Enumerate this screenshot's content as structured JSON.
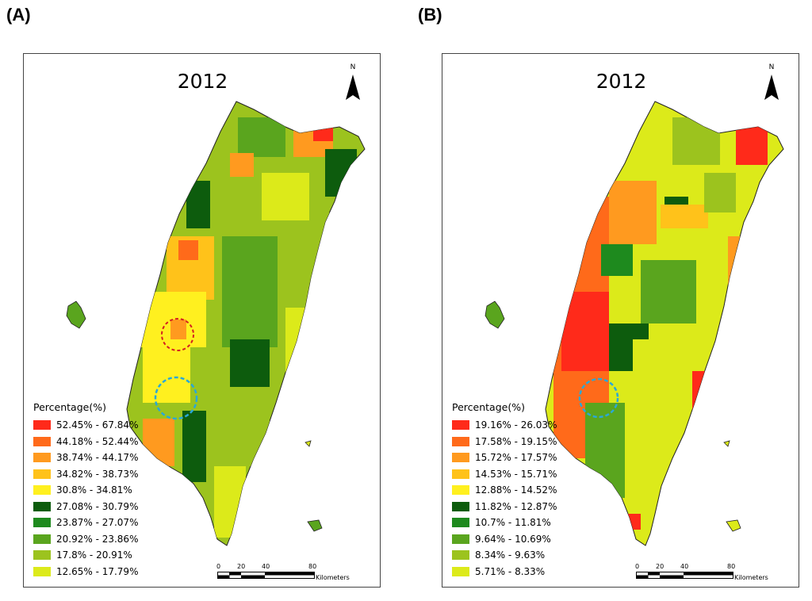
{
  "panels": [
    {
      "label": "(A)",
      "year": "2012",
      "north_letter": "N",
      "legend": {
        "title": "Percentage(%)",
        "items": [
          {
            "range": "52.45% - 67.84%",
            "color": "#ff2a1a"
          },
          {
            "range": "44.18% - 52.44%",
            "color": "#ff6a1a"
          },
          {
            "range": "38.74% - 44.17%",
            "color": "#ff9a1f"
          },
          {
            "range": "34.82% - 38.73%",
            "color": "#ffc21a"
          },
          {
            "range": "30.8% - 34.81%",
            "color": "#fff01f"
          },
          {
            "range": "27.08% - 30.79%",
            "color": "#0d5c0d"
          },
          {
            "range": "23.87% - 27.07%",
            "color": "#1e8a1e"
          },
          {
            "range": "20.92% - 23.86%",
            "color": "#5aa51e"
          },
          {
            "range": "17.8% - 20.91%",
            "color": "#9cc31e"
          },
          {
            "range": "12.65% - 17.79%",
            "color": "#dcea1a"
          }
        ]
      },
      "scale": {
        "ticks": [
          "0",
          "20",
          "40",
          "80"
        ],
        "unit": "Kilometers"
      },
      "circles": [
        "red",
        "blue"
      ]
    },
    {
      "label": "(B)",
      "year": "2012",
      "north_letter": "N",
      "legend": {
        "title": "Percentage(%)",
        "items": [
          {
            "range": "19.16% - 26.03%",
            "color": "#ff2a1a"
          },
          {
            "range": "17.58% - 19.15%",
            "color": "#ff6a1a"
          },
          {
            "range": "15.72% - 17.57%",
            "color": "#ff9a1f"
          },
          {
            "range": "14.53% - 15.71%",
            "color": "#ffc21a"
          },
          {
            "range": "12.88% - 14.52%",
            "color": "#fff01f"
          },
          {
            "range": "11.82% - 12.87%",
            "color": "#0d5c0d"
          },
          {
            "range": "10.7% - 11.81%",
            "color": "#1e8a1e"
          },
          {
            "range": "9.64% - 10.69%",
            "color": "#5aa51e"
          },
          {
            "range": "8.34% - 9.63%",
            "color": "#9cc31e"
          },
          {
            "range": "5.71% - 8.33%",
            "color": "#dcea1a"
          }
        ]
      },
      "scale": {
        "ticks": [
          "0",
          "20",
          "40",
          "80"
        ],
        "unit": "Kilometers"
      },
      "circles": [
        "blue"
      ]
    }
  ]
}
